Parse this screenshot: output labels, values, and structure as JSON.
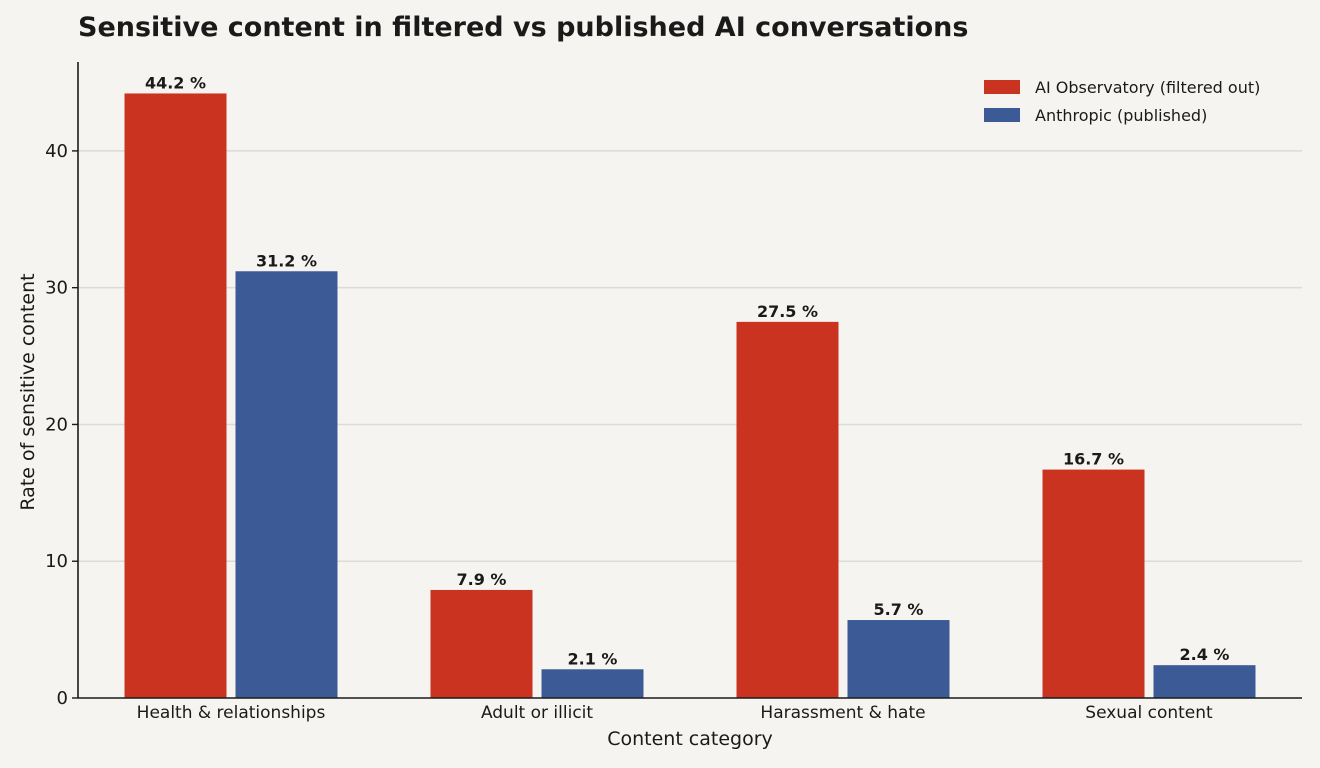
{
  "chart_data": {
    "type": "bar",
    "title": "Sensitive content in filtered vs published AI conversations",
    "xlabel": "Content category",
    "ylabel": "Rate of sensitive content",
    "categories": [
      "Health & relationships",
      "Adult or illicit",
      "Harassment & hate",
      "Sexual content"
    ],
    "series": [
      {
        "name": "AI Observatory (filtered out)",
        "values": [
          44.2,
          7.9,
          27.5,
          16.7
        ],
        "color": "#c9331f"
      },
      {
        "name": "Anthropic (published)",
        "values": [
          31.2,
          2.1,
          5.7,
          2.4
        ],
        "color": "#3c5b96"
      }
    ],
    "value_suffix": " %",
    "ylim": [
      0,
      46.5
    ],
    "yticks": [
      0,
      10,
      20,
      30,
      40
    ],
    "grid": true,
    "legend_position": "top-right"
  }
}
